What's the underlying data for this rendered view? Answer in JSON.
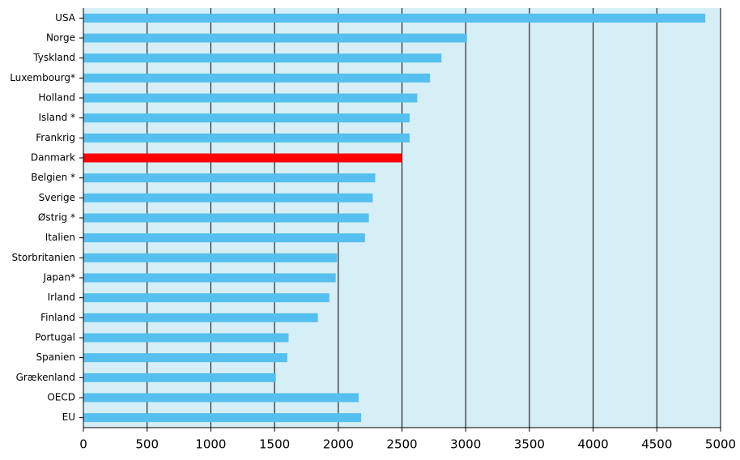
{
  "chart_data": {
    "type": "bar",
    "orientation": "horizontal",
    "categories": [
      "USA",
      "Norge",
      "Tyskland",
      "Luxembourg*",
      "Holland",
      "Island *",
      "Frankrig",
      "Danmark",
      "Belgien *",
      "Sverige",
      "Østrig *",
      "Italien",
      "Storbritanien",
      "Japan*",
      "Irland",
      "Finland",
      "Portugal",
      "Spanien",
      "Grækenland",
      "OECD",
      "EU"
    ],
    "values": [
      4880,
      3010,
      2810,
      2720,
      2620,
      2560,
      2560,
      2500,
      2290,
      2270,
      2240,
      2210,
      1990,
      1980,
      1930,
      1840,
      1610,
      1600,
      1510,
      2160,
      2180
    ],
    "colors": [
      "#55c0ef",
      "#55c0ef",
      "#55c0ef",
      "#55c0ef",
      "#55c0ef",
      "#55c0ef",
      "#55c0ef",
      "#ff0000",
      "#55c0ef",
      "#55c0ef",
      "#55c0ef",
      "#55c0ef",
      "#55c0ef",
      "#55c0ef",
      "#55c0ef",
      "#55c0ef",
      "#55c0ef",
      "#55c0ef",
      "#55c0ef",
      "#55c0ef",
      "#55c0ef"
    ],
    "xlim": [
      0,
      5000
    ],
    "xticks": [
      0,
      500,
      1000,
      1500,
      2000,
      2500,
      3000,
      3500,
      4000,
      4500,
      5000
    ],
    "grid": true
  }
}
